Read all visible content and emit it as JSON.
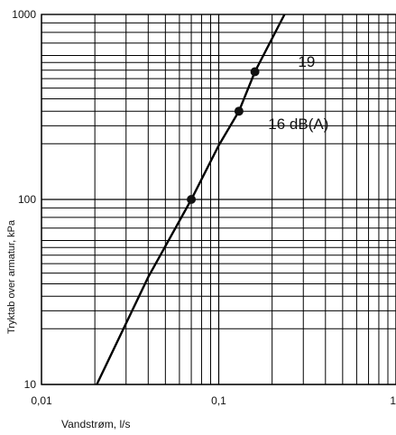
{
  "chart_data": {
    "type": "line",
    "title": "",
    "xlabel": "Vandstrøm, l/s",
    "ylabel": "Tryktab over armatur, kPa",
    "x_scale": "log",
    "y_scale": "log",
    "xlim": [
      0.01,
      1
    ],
    "ylim": [
      10,
      1000
    ],
    "grid": true,
    "x_ticks": [
      {
        "value": 0.01,
        "label": "0,01"
      },
      {
        "value": 0.1,
        "label": "0,1"
      },
      {
        "value": 1,
        "label": "1"
      }
    ],
    "y_ticks": [
      {
        "value": 10,
        "label": "10"
      },
      {
        "value": 100,
        "label": "100"
      },
      {
        "value": 1000,
        "label": "1000"
      }
    ],
    "series": [
      {
        "x": [
          0.0205,
          0.04,
          0.07,
          0.1,
          0.13,
          0.16,
          0.235
        ],
        "y": [
          10,
          38,
          100,
          196,
          300,
          490,
          1000
        ]
      }
    ],
    "markers": [
      {
        "x": 0.07,
        "y": 100
      },
      {
        "x": 0.13,
        "y": 300
      },
      {
        "x": 0.16,
        "y": 490
      }
    ],
    "annotations": [
      {
        "text": "19",
        "x": 0.28,
        "y": 520
      },
      {
        "text": "16 dB(A)",
        "x": 0.19,
        "y": 240
      }
    ]
  }
}
